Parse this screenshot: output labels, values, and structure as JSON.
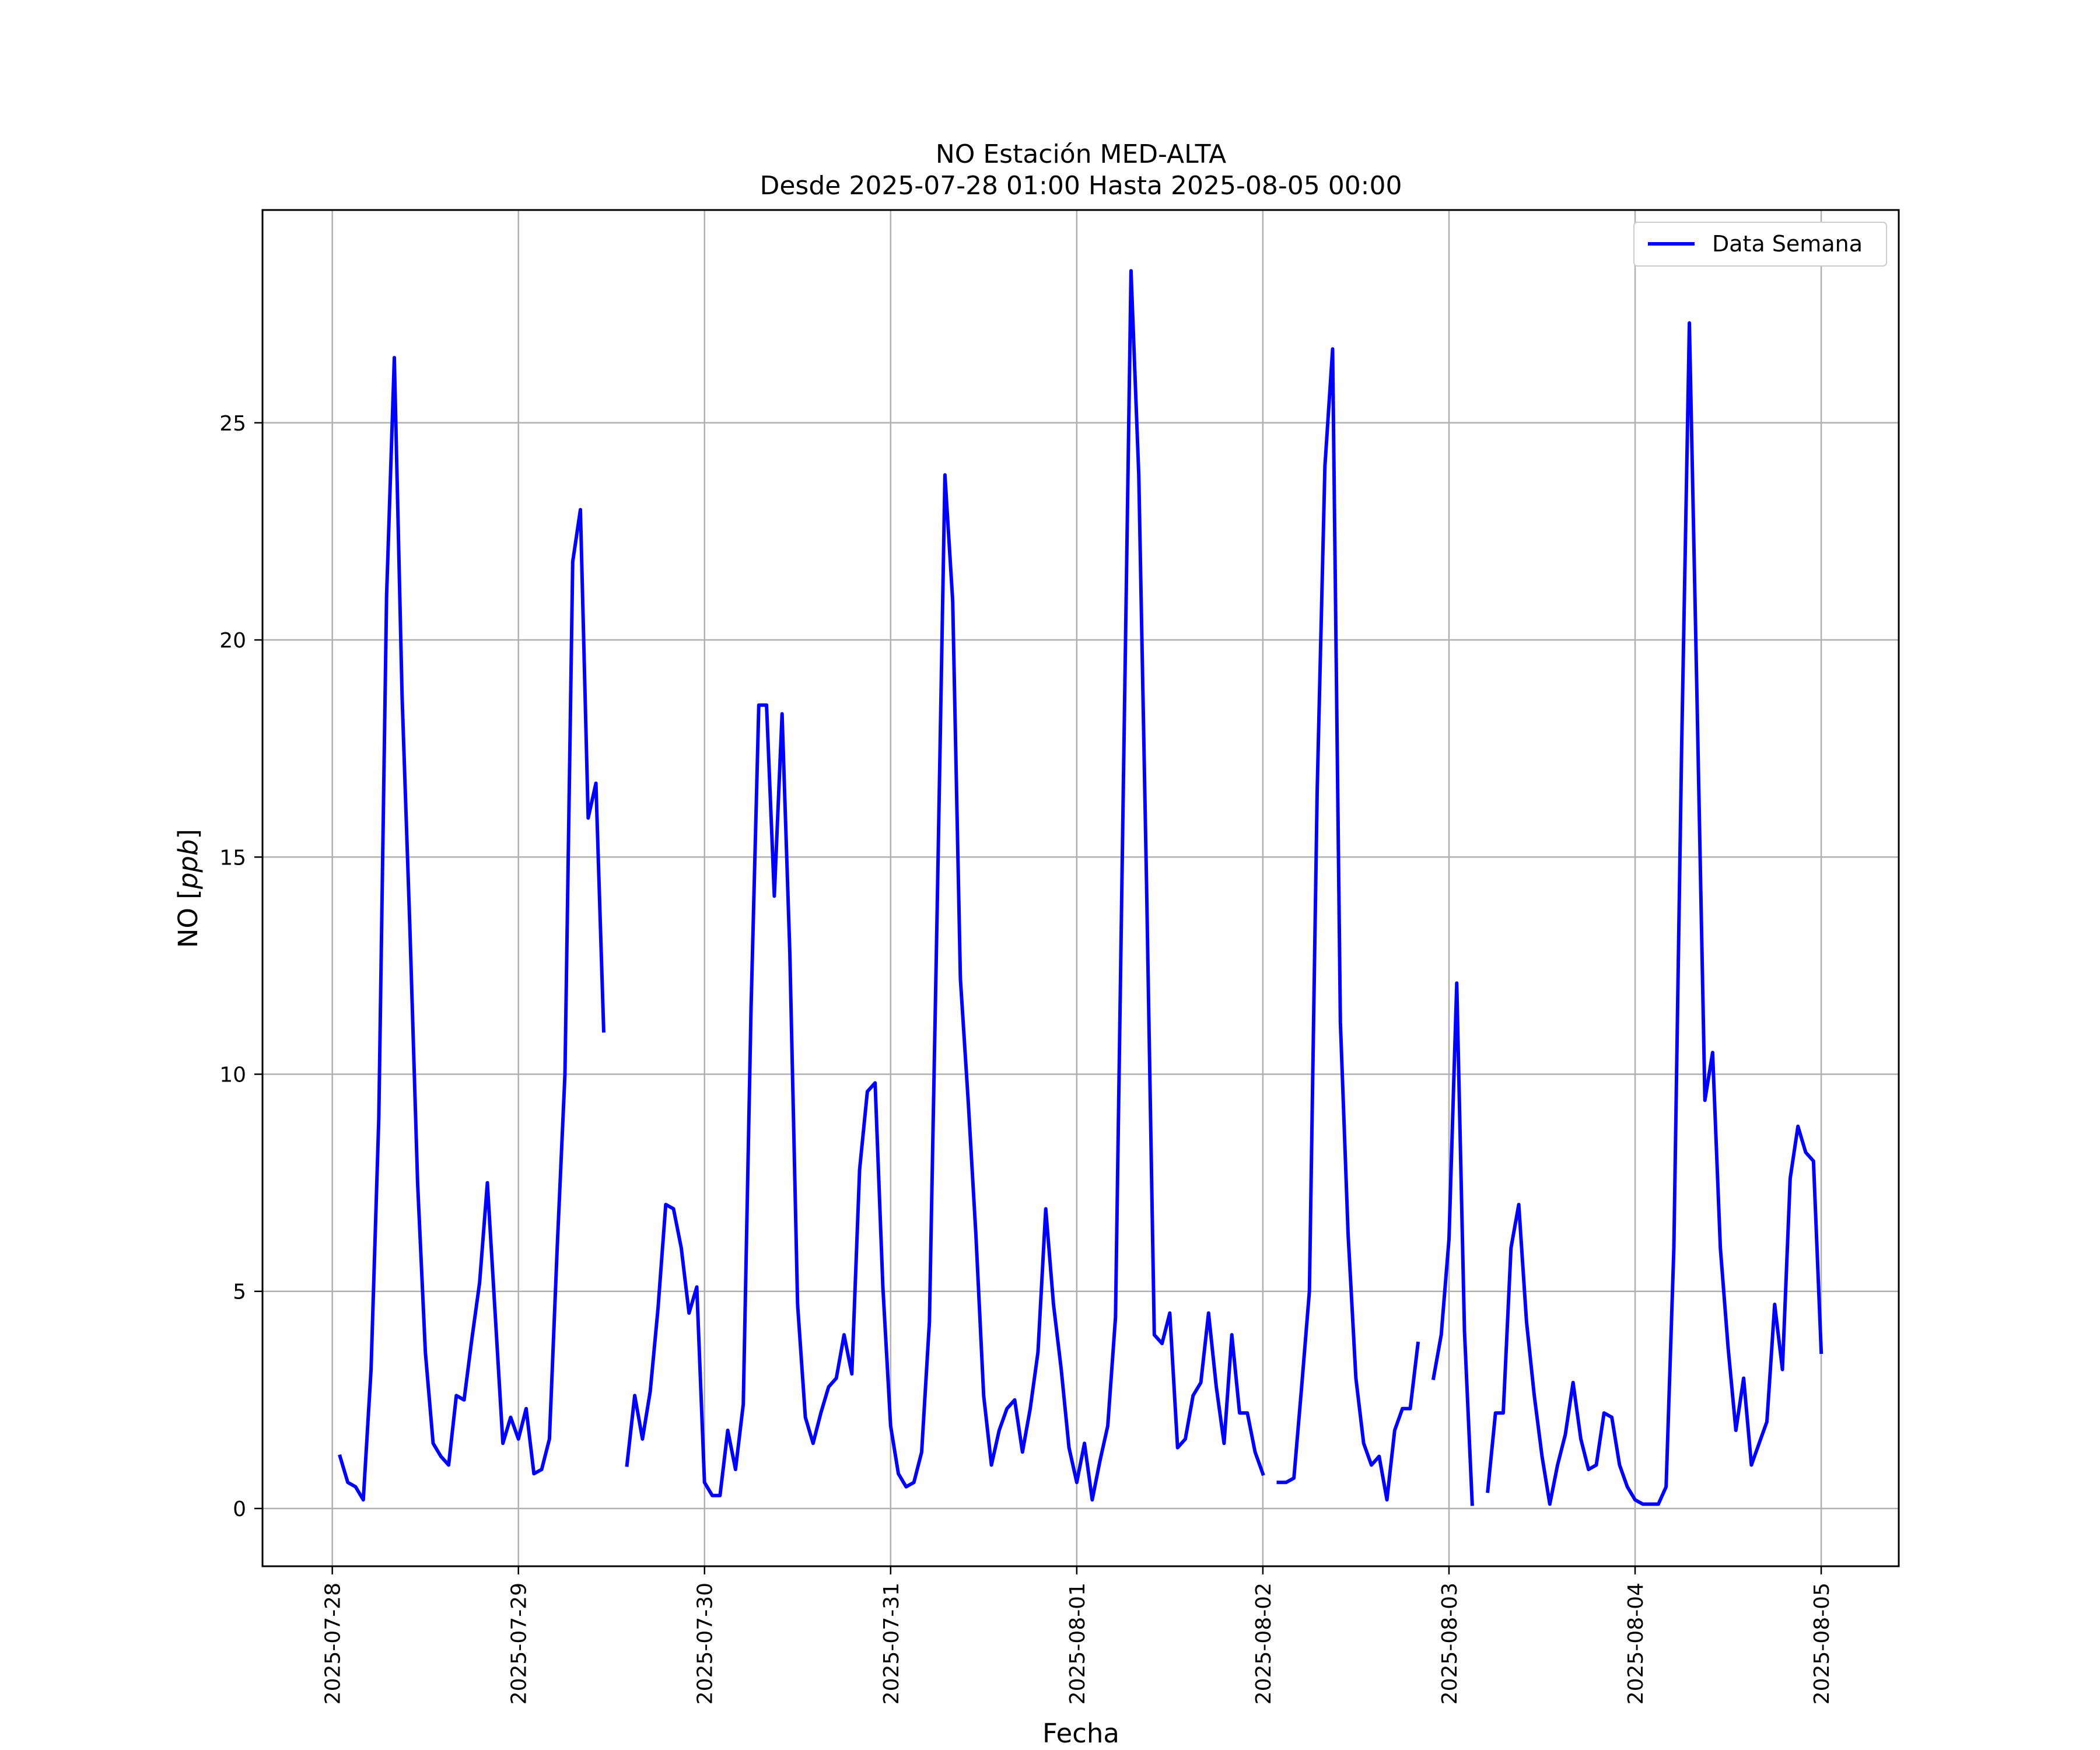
{
  "chart_data": {
    "type": "line",
    "title": "NO Estación MED-ALTA",
    "subtitle": "Desde 2025-07-28 01:00 Hasta 2025-08-05 00:00",
    "xlabel": "Fecha",
    "ylabel_prefix": "NO [",
    "ylabel_unit": "ppb",
    "ylabel_suffix": "]",
    "x_ticks": [
      "2025-07-28",
      "2025-07-29",
      "2025-07-30",
      "2025-07-31",
      "2025-08-01",
      "2025-08-02",
      "2025-08-03",
      "2025-08-04",
      "2025-08-05"
    ],
    "x_range": [
      "2025-07-27 15:00",
      "2025-08-05 10:00"
    ],
    "y_ticks": [
      0,
      5,
      10,
      15,
      20,
      25
    ],
    "ylim": [
      -1.33,
      29.9
    ],
    "grid": true,
    "legend_position": "top-right",
    "series": [
      {
        "name": "Data Semana",
        "color": "#0000ff",
        "segments": [
          [
            [
              "2025-07-28 01:00",
              1.2
            ],
            [
              "2025-07-28 02:00",
              0.6
            ],
            [
              "2025-07-28 03:00",
              0.5
            ],
            [
              "2025-07-28 04:00",
              0.2
            ],
            [
              "2025-07-28 05:00",
              3.2
            ],
            [
              "2025-07-28 06:00",
              9.0
            ],
            [
              "2025-07-28 07:00",
              21.0
            ],
            [
              "2025-07-28 08:00",
              26.5
            ],
            [
              "2025-07-28 09:00",
              18.7
            ],
            [
              "2025-07-28 10:00",
              13.4
            ],
            [
              "2025-07-28 11:00",
              7.5
            ],
            [
              "2025-07-28 12:00",
              3.6
            ],
            [
              "2025-07-28 13:00",
              1.5
            ],
            [
              "2025-07-28 14:00",
              1.2
            ],
            [
              "2025-07-28 15:00",
              1.0
            ],
            [
              "2025-07-28 16:00",
              2.6
            ],
            [
              "2025-07-28 17:00",
              2.5
            ],
            [
              "2025-07-28 18:00",
              3.9
            ],
            [
              "2025-07-28 19:00",
              5.2
            ],
            [
              "2025-07-28 20:00",
              7.5
            ],
            [
              "2025-07-28 21:00",
              4.5
            ],
            [
              "2025-07-28 22:00",
              1.5
            ],
            [
              "2025-07-28 23:00",
              2.1
            ],
            [
              "2025-07-29 00:00",
              1.6
            ],
            [
              "2025-07-29 01:00",
              2.3
            ],
            [
              "2025-07-29 02:00",
              0.8
            ],
            [
              "2025-07-29 03:00",
              0.9
            ],
            [
              "2025-07-29 04:00",
              1.6
            ],
            [
              "2025-07-29 05:00",
              6.0
            ],
            [
              "2025-07-29 06:00",
              10.0
            ],
            [
              "2025-07-29 07:00",
              21.8
            ],
            [
              "2025-07-29 08:00",
              23.0
            ],
            [
              "2025-07-29 09:00",
              15.9
            ],
            [
              "2025-07-29 10:00",
              16.7
            ],
            [
              "2025-07-29 11:00",
              11.0
            ]
          ],
          [
            [
              "2025-07-29 14:00",
              1.0
            ],
            [
              "2025-07-29 15:00",
              2.6
            ],
            [
              "2025-07-29 16:00",
              1.6
            ],
            [
              "2025-07-29 17:00",
              2.7
            ],
            [
              "2025-07-29 18:00",
              4.6
            ],
            [
              "2025-07-29 19:00",
              7.0
            ],
            [
              "2025-07-29 20:00",
              6.9
            ],
            [
              "2025-07-29 21:00",
              6.0
            ],
            [
              "2025-07-29 22:00",
              4.5
            ],
            [
              "2025-07-29 23:00",
              5.1
            ],
            [
              "2025-07-30 00:00",
              0.6
            ],
            [
              "2025-07-30 01:00",
              0.3
            ],
            [
              "2025-07-30 02:00",
              0.3
            ],
            [
              "2025-07-30 03:00",
              1.8
            ],
            [
              "2025-07-30 04:00",
              0.9
            ],
            [
              "2025-07-30 05:00",
              2.4
            ],
            [
              "2025-07-30 06:00",
              11.5
            ],
            [
              "2025-07-30 07:00",
              18.5
            ],
            [
              "2025-07-30 08:00",
              18.5
            ],
            [
              "2025-07-30 09:00",
              14.1
            ],
            [
              "2025-07-30 10:00",
              18.3
            ],
            [
              "2025-07-30 11:00",
              12.8
            ],
            [
              "2025-07-30 12:00",
              4.7
            ],
            [
              "2025-07-30 13:00",
              2.1
            ],
            [
              "2025-07-30 14:00",
              1.5
            ],
            [
              "2025-07-30 15:00",
              2.2
            ],
            [
              "2025-07-30 16:00",
              2.8
            ],
            [
              "2025-07-30 17:00",
              3.0
            ],
            [
              "2025-07-30 18:00",
              4.0
            ],
            [
              "2025-07-30 19:00",
              3.1
            ],
            [
              "2025-07-30 20:00",
              7.8
            ],
            [
              "2025-07-30 21:00",
              9.6
            ],
            [
              "2025-07-30 22:00",
              9.8
            ],
            [
              "2025-07-30 23:00",
              5.1
            ],
            [
              "2025-07-31 00:00",
              1.9
            ],
            [
              "2025-07-31 01:00",
              0.8
            ],
            [
              "2025-07-31 02:00",
              0.5
            ],
            [
              "2025-07-31 03:00",
              0.6
            ],
            [
              "2025-07-31 04:00",
              1.3
            ],
            [
              "2025-07-31 05:00",
              4.3
            ],
            [
              "2025-07-31 06:00",
              13.8
            ],
            [
              "2025-07-31 07:00",
              23.8
            ],
            [
              "2025-07-31 08:00",
              20.9
            ],
            [
              "2025-07-31 09:00",
              12.2
            ],
            [
              "2025-07-31 10:00",
              9.4
            ],
            [
              "2025-07-31 11:00",
              6.3
            ],
            [
              "2025-07-31 12:00",
              2.6
            ],
            [
              "2025-07-31 13:00",
              1.0
            ],
            [
              "2025-07-31 14:00",
              1.8
            ],
            [
              "2025-07-31 15:00",
              2.3
            ],
            [
              "2025-07-31 16:00",
              2.5
            ],
            [
              "2025-07-31 17:00",
              1.3
            ],
            [
              "2025-07-31 18:00",
              2.3
            ],
            [
              "2025-07-31 19:00",
              3.6
            ],
            [
              "2025-07-31 20:00",
              6.9
            ],
            [
              "2025-07-31 21:00",
              4.7
            ],
            [
              "2025-07-31 22:00",
              3.2
            ],
            [
              "2025-07-31 23:00",
              1.4
            ],
            [
              "2025-08-01 00:00",
              0.6
            ],
            [
              "2025-08-01 01:00",
              1.5
            ],
            [
              "2025-08-01 02:00",
              0.2
            ],
            [
              "2025-08-01 03:00",
              1.1
            ],
            [
              "2025-08-01 04:00",
              1.9
            ],
            [
              "2025-08-01 05:00",
              4.4
            ],
            [
              "2025-08-01 06:00",
              16.5
            ],
            [
              "2025-08-01 07:00",
              28.5
            ],
            [
              "2025-08-01 08:00",
              23.8
            ],
            [
              "2025-08-01 09:00",
              14.4
            ],
            [
              "2025-08-01 10:00",
              4.0
            ],
            [
              "2025-08-01 11:00",
              3.8
            ],
            [
              "2025-08-01 12:00",
              4.5
            ],
            [
              "2025-08-01 13:00",
              1.4
            ],
            [
              "2025-08-01 14:00",
              1.6
            ],
            [
              "2025-08-01 15:00",
              2.6
            ],
            [
              "2025-08-01 16:00",
              2.9
            ],
            [
              "2025-08-01 17:00",
              4.5
            ],
            [
              "2025-08-01 18:00",
              2.8
            ],
            [
              "2025-08-01 19:00",
              1.5
            ],
            [
              "2025-08-01 20:00",
              4.0
            ],
            [
              "2025-08-01 21:00",
              2.2
            ],
            [
              "2025-08-01 22:00",
              2.2
            ],
            [
              "2025-08-01 23:00",
              1.3
            ],
            [
              "2025-08-02 00:00",
              0.8
            ]
          ],
          [
            [
              "2025-08-02 02:00",
              0.6
            ],
            [
              "2025-08-02 03:00",
              0.6
            ],
            [
              "2025-08-02 04:00",
              0.7
            ],
            [
              "2025-08-02 05:00",
              2.8
            ],
            [
              "2025-08-02 06:00",
              5.0
            ],
            [
              "2025-08-02 07:00",
              16.5
            ],
            [
              "2025-08-02 08:00",
              24.0
            ],
            [
              "2025-08-02 09:00",
              26.7
            ],
            [
              "2025-08-02 10:00",
              11.2
            ],
            [
              "2025-08-02 11:00",
              6.3
            ],
            [
              "2025-08-02 12:00",
              3.0
            ],
            [
              "2025-08-02 13:00",
              1.5
            ],
            [
              "2025-08-02 14:00",
              1.0
            ],
            [
              "2025-08-02 15:00",
              1.2
            ],
            [
              "2025-08-02 16:00",
              0.2
            ],
            [
              "2025-08-02 17:00",
              1.8
            ],
            [
              "2025-08-02 18:00",
              2.3
            ],
            [
              "2025-08-02 19:00",
              2.3
            ],
            [
              "2025-08-02 20:00",
              3.8
            ]
          ],
          [
            [
              "2025-08-02 22:00",
              3.0
            ],
            [
              "2025-08-02 23:00",
              4.0
            ],
            [
              "2025-08-03 00:00",
              6.2
            ],
            [
              "2025-08-03 01:00",
              12.1
            ],
            [
              "2025-08-03 02:00",
              4.1
            ],
            [
              "2025-08-03 03:00",
              0.1
            ]
          ],
          [
            [
              "2025-08-03 05:00",
              0.4
            ],
            [
              "2025-08-03 06:00",
              2.2
            ],
            [
              "2025-08-03 07:00",
              2.2
            ],
            [
              "2025-08-03 08:00",
              6.0
            ],
            [
              "2025-08-03 09:00",
              7.0
            ],
            [
              "2025-08-03 10:00",
              4.3
            ],
            [
              "2025-08-03 11:00",
              2.6
            ],
            [
              "2025-08-03 12:00",
              1.2
            ],
            [
              "2025-08-03 13:00",
              0.1
            ],
            [
              "2025-08-03 14:00",
              1.0
            ],
            [
              "2025-08-03 15:00",
              1.7
            ],
            [
              "2025-08-03 16:00",
              2.9
            ],
            [
              "2025-08-03 17:00",
              1.6
            ],
            [
              "2025-08-03 18:00",
              0.9
            ],
            [
              "2025-08-03 19:00",
              1.0
            ],
            [
              "2025-08-03 20:00",
              2.2
            ],
            [
              "2025-08-03 21:00",
              2.1
            ],
            [
              "2025-08-03 22:00",
              1.0
            ],
            [
              "2025-08-03 23:00",
              0.5
            ],
            [
              "2025-08-04 00:00",
              0.2
            ],
            [
              "2025-08-04 01:00",
              0.1
            ],
            [
              "2025-08-04 02:00",
              0.1
            ],
            [
              "2025-08-04 03:00",
              0.1
            ],
            [
              "2025-08-04 04:00",
              0.5
            ],
            [
              "2025-08-04 05:00",
              6.0
            ],
            [
              "2025-08-04 06:00",
              17.5
            ],
            [
              "2025-08-04 07:00",
              27.3
            ],
            [
              "2025-08-04 08:00",
              18.5
            ],
            [
              "2025-08-04 09:00",
              9.4
            ],
            [
              "2025-08-04 10:00",
              10.5
            ],
            [
              "2025-08-04 11:00",
              6.0
            ],
            [
              "2025-08-04 12:00",
              3.7
            ],
            [
              "2025-08-04 13:00",
              1.8
            ],
            [
              "2025-08-04 14:00",
              3.0
            ],
            [
              "2025-08-04 15:00",
              1.0
            ],
            [
              "2025-08-04 16:00",
              1.5
            ],
            [
              "2025-08-04 17:00",
              2.0
            ],
            [
              "2025-08-04 18:00",
              4.7
            ],
            [
              "2025-08-04 19:00",
              3.2
            ],
            [
              "2025-08-04 20:00",
              7.6
            ],
            [
              "2025-08-04 21:00",
              8.8
            ],
            [
              "2025-08-04 22:00",
              8.2
            ],
            [
              "2025-08-04 23:00",
              8.0
            ],
            [
              "2025-08-05 00:00",
              3.6
            ]
          ]
        ]
      }
    ]
  }
}
